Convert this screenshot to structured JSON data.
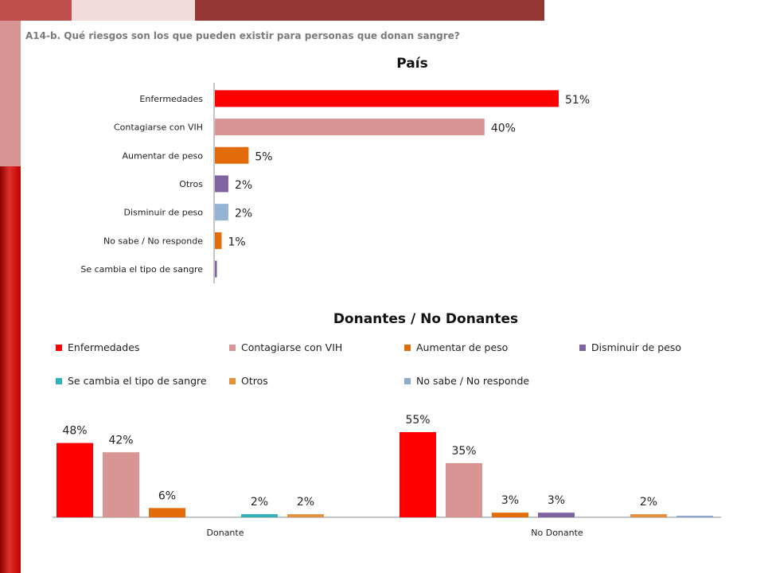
{
  "slide": {
    "question": "A14-b. Qué riesgos son los que pueden existir para personas que donan sangre?"
  },
  "chart_data": [
    {
      "type": "bar",
      "orientation": "horizontal",
      "title": "País",
      "categories": [
        "Enfermedades",
        "Contagiarse con VIH",
        "Aumentar de peso",
        "Otros",
        "Disminuir de peso",
        "No sabe / No responde",
        "Se cambia el tipo de sangre"
      ],
      "values": [
        51,
        40,
        5,
        2,
        2,
        1,
        0.3
      ],
      "labels": [
        "51%",
        "40%",
        "5%",
        "2%",
        "2%",
        "1%",
        ""
      ],
      "colors": [
        "#ff0000",
        "#d99594",
        "#e36c0a",
        "#8064a2",
        "#95b3d7",
        "#e36c0a",
        "#8064a2"
      ],
      "xlim": [
        0,
        100
      ],
      "grid": false
    },
    {
      "type": "bar",
      "title": "Donantes / No Donantes",
      "categories": [
        "Donante",
        "No Donante"
      ],
      "legend_position": "top",
      "series": [
        {
          "name": "Enfermedades",
          "color": "#ff0000",
          "values": [
            48,
            55
          ],
          "labels": [
            "48%",
            "55%"
          ]
        },
        {
          "name": "Contagiarse con VIH",
          "color": "#d99594",
          "values": [
            42,
            35
          ],
          "labels": [
            "42%",
            "35%"
          ]
        },
        {
          "name": "Aumentar de peso",
          "color": "#e36c0a",
          "values": [
            6,
            3
          ],
          "labels": [
            "6%",
            "3%"
          ]
        },
        {
          "name": "Disminuir de peso",
          "color": "#8064a2",
          "values": [
            0,
            3
          ],
          "labels": [
            "",
            "3%"
          ]
        },
        {
          "name": "Se cambia el tipo de sangre",
          "color": "#31b0b8",
          "values": [
            2,
            0
          ],
          "labels": [
            "2%",
            ""
          ]
        },
        {
          "name": "Otros",
          "color": "#e3903f",
          "values": [
            2,
            2
          ],
          "labels": [
            "2%",
            "2%"
          ]
        },
        {
          "name": "No sabe / No responde",
          "color": "#8eaacc",
          "values": [
            0,
            1
          ],
          "labels": [
            "",
            ""
          ]
        }
      ],
      "ylim": [
        0,
        60
      ],
      "grid": false
    }
  ]
}
